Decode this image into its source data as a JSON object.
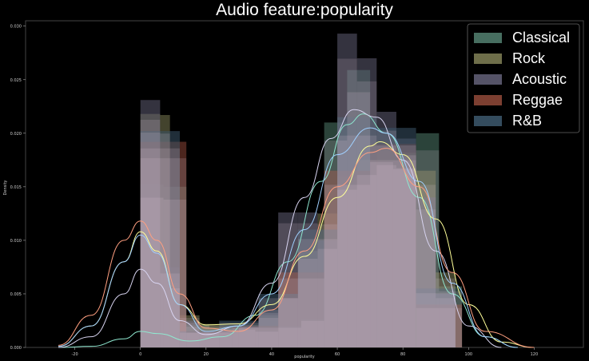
{
  "chart_data": {
    "type": "histogram+kde",
    "title": "Audio feature:popularity",
    "xlabel": "popularity",
    "ylabel": "Density",
    "xlim": [
      -35,
      135
    ],
    "ylim": [
      0,
      0.0305
    ],
    "x_ticks": [
      "-20",
      "0",
      "20",
      "40",
      "60",
      "80",
      "100",
      "120"
    ],
    "y_ticks": [
      "0.000",
      "0.005",
      "0.010",
      "0.015",
      "0.020",
      "0.025",
      "0.030"
    ],
    "legend_position": "top-right",
    "grid": false,
    "series": [
      {
        "name": "Classical",
        "color": "#4f7a6a",
        "kde_color": "#8fe8d0",
        "bins": [
          [
            0,
            7,
            0.0152
          ],
          [
            7,
            14,
            0.015
          ],
          [
            14,
            21,
            0.0021
          ],
          [
            21,
            28,
            0.0019
          ],
          [
            28,
            35,
            0.0018
          ],
          [
            35,
            42,
            0.0016
          ],
          [
            42,
            49,
            0.002
          ],
          [
            49,
            56,
            0.0027
          ],
          [
            56,
            63,
            0.021
          ],
          [
            63,
            70,
            0.0259
          ],
          [
            70,
            77,
            0.0188
          ],
          [
            77,
            84,
            0.0181
          ],
          [
            84,
            91,
            0.02
          ],
          [
            91,
            98,
            0.0057
          ]
        ],
        "kde": [
          [
            -25,
            0
          ],
          [
            -15,
            0.0001
          ],
          [
            -5,
            0.0008
          ],
          [
            0,
            0.0015
          ],
          [
            5,
            0.0013
          ],
          [
            15,
            0.0006
          ],
          [
            25,
            0.001
          ],
          [
            35,
            0.003
          ],
          [
            45,
            0.008
          ],
          [
            55,
            0.0155
          ],
          [
            63,
            0.0208
          ],
          [
            68,
            0.0218
          ],
          [
            75,
            0.02
          ],
          [
            85,
            0.014
          ],
          [
            95,
            0.005
          ],
          [
            105,
            0.001
          ],
          [
            115,
            0
          ]
        ]
      },
      {
        "name": "Rock",
        "color": "#7a7a52",
        "kde_color": "#ffff99",
        "bins": [
          [
            0,
            6,
            0.0218
          ],
          [
            6,
            9,
            0.0217
          ],
          [
            9,
            12,
            0.006
          ],
          [
            12,
            18,
            0.003
          ],
          [
            18,
            24,
            0.0022
          ],
          [
            24,
            30,
            0.0021
          ],
          [
            30,
            36,
            0.0021
          ],
          [
            36,
            42,
            0.003
          ],
          [
            42,
            48,
            0.005
          ],
          [
            48,
            54,
            0.009
          ],
          [
            54,
            60,
            0.0125
          ],
          [
            60,
            66,
            0.016
          ],
          [
            66,
            72,
            0.0175
          ],
          [
            72,
            78,
            0.0185
          ],
          [
            78,
            84,
            0.0182
          ],
          [
            84,
            90,
            0.0165
          ],
          [
            90,
            96,
            0.007
          ]
        ],
        "kde": [
          [
            -25,
            0.0001
          ],
          [
            -15,
            0.002
          ],
          [
            -5,
            0.008
          ],
          [
            0,
            0.0108
          ],
          [
            5,
            0.009
          ],
          [
            12,
            0.004
          ],
          [
            20,
            0.0021
          ],
          [
            30,
            0.0022
          ],
          [
            40,
            0.004
          ],
          [
            50,
            0.0085
          ],
          [
            60,
            0.014
          ],
          [
            70,
            0.0188
          ],
          [
            73,
            0.0192
          ],
          [
            80,
            0.018
          ],
          [
            90,
            0.012
          ],
          [
            100,
            0.004
          ],
          [
            110,
            0.0005
          ],
          [
            120,
            0
          ]
        ]
      },
      {
        "name": "Acoustic",
        "color": "#5e5c72",
        "kde_color": "#d8d4f0",
        "bins": [
          [
            0,
            6,
            0.0231
          ],
          [
            6,
            12,
            0.0075
          ],
          [
            12,
            18,
            0.0025
          ],
          [
            18,
            24,
            0.0015
          ],
          [
            24,
            30,
            0.0016
          ],
          [
            30,
            36,
            0.002
          ],
          [
            36,
            42,
            0.0035
          ],
          [
            42,
            48,
            0.0126
          ],
          [
            48,
            54,
            0.0126
          ],
          [
            54,
            60,
            0.01
          ],
          [
            60,
            66,
            0.0293
          ],
          [
            66,
            72,
            0.027
          ],
          [
            72,
            78,
            0.022
          ],
          [
            78,
            84,
            0.0195
          ],
          [
            84,
            90,
            0.014
          ],
          [
            90,
            96,
            0.005
          ]
        ],
        "kde": [
          [
            -25,
            0
          ],
          [
            -15,
            0.001
          ],
          [
            -5,
            0.005
          ],
          [
            0,
            0.0073
          ],
          [
            5,
            0.006
          ],
          [
            12,
            0.0025
          ],
          [
            20,
            0.0012
          ],
          [
            30,
            0.002
          ],
          [
            40,
            0.006
          ],
          [
            50,
            0.014
          ],
          [
            58,
            0.0195
          ],
          [
            65,
            0.0222
          ],
          [
            72,
            0.0215
          ],
          [
            80,
            0.0175
          ],
          [
            90,
            0.009
          ],
          [
            100,
            0.002
          ],
          [
            110,
            0
          ]
        ]
      },
      {
        "name": "Reggae",
        "color": "#8a4636",
        "kde_color": "#ff9f80",
        "bins": [
          [
            0,
            14,
            0.0192
          ],
          [
            14,
            28,
            0.0015
          ],
          [
            28,
            42,
            0.002
          ],
          [
            42,
            56,
            0.007
          ],
          [
            56,
            70,
            0.0165
          ],
          [
            70,
            84,
            0.019
          ],
          [
            84,
            98,
            0.004
          ]
        ],
        "kde": [
          [
            -25,
            0.0002
          ],
          [
            -15,
            0.003
          ],
          [
            -5,
            0.01
          ],
          [
            0,
            0.0118
          ],
          [
            5,
            0.01
          ],
          [
            12,
            0.005
          ],
          [
            20,
            0.0018
          ],
          [
            30,
            0.0015
          ],
          [
            40,
            0.0035
          ],
          [
            50,
            0.009
          ],
          [
            60,
            0.015
          ],
          [
            70,
            0.0182
          ],
          [
            75,
            0.0186
          ],
          [
            85,
            0.015
          ],
          [
            95,
            0.007
          ],
          [
            105,
            0.0015
          ],
          [
            120,
            0
          ]
        ]
      },
      {
        "name": "R&B",
        "color": "#3a5468",
        "kde_color": "#a0d0ff",
        "bins": [
          [
            0,
            12,
            0.0202
          ],
          [
            12,
            24,
            0.0015
          ],
          [
            24,
            36,
            0.0025
          ],
          [
            36,
            48,
            0.005
          ],
          [
            48,
            60,
            0.011
          ],
          [
            60,
            72,
            0.0215
          ],
          [
            72,
            84,
            0.0205
          ],
          [
            84,
            96,
            0.0055
          ]
        ],
        "kde": [
          [
            -25,
            0.0001
          ],
          [
            -15,
            0.002
          ],
          [
            -5,
            0.008
          ],
          [
            0,
            0.0105
          ],
          [
            5,
            0.0088
          ],
          [
            12,
            0.004
          ],
          [
            20,
            0.0015
          ],
          [
            30,
            0.002
          ],
          [
            40,
            0.005
          ],
          [
            50,
            0.011
          ],
          [
            60,
            0.018
          ],
          [
            70,
            0.0205
          ],
          [
            75,
            0.02
          ],
          [
            85,
            0.0155
          ],
          [
            95,
            0.006
          ],
          [
            105,
            0.001
          ],
          [
            115,
            0
          ]
        ]
      }
    ]
  }
}
